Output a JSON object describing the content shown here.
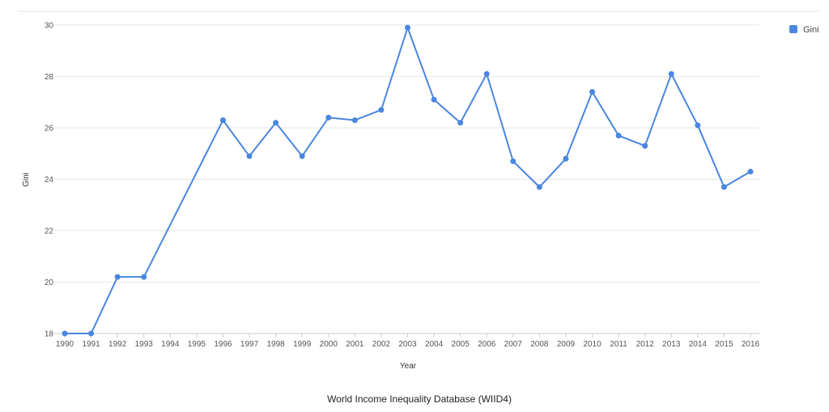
{
  "chart_data": {
    "type": "line",
    "title": "",
    "xlabel": "Year",
    "ylabel": "Gini",
    "ylim": [
      18,
      30
    ],
    "yticks": [
      18,
      20,
      22,
      24,
      26,
      28,
      30
    ],
    "grid": true,
    "legend_position": "top-right",
    "x": [
      "1990",
      "1991",
      "1992",
      "1993",
      "1994",
      "1995",
      "1996",
      "1997",
      "1998",
      "1999",
      "2000",
      "2001",
      "2002",
      "2003",
      "2004",
      "2005",
      "2006",
      "2007",
      "2008",
      "2009",
      "2010",
      "2011",
      "2012",
      "2013",
      "2014",
      "2015",
      "2016"
    ],
    "series": [
      {
        "name": "Gini",
        "color": "#4a86e0",
        "points": [
          {
            "x": "1990",
            "y": 18.0
          },
          {
            "x": "1991",
            "y": 18.0
          },
          {
            "x": "1992",
            "y": 20.2
          },
          {
            "x": "1993",
            "y": 20.2
          },
          {
            "x": "1996",
            "y": 26.3
          },
          {
            "x": "1997",
            "y": 24.9
          },
          {
            "x": "1998",
            "y": 26.2
          },
          {
            "x": "1999",
            "y": 24.9
          },
          {
            "x": "2000",
            "y": 26.4
          },
          {
            "x": "2001",
            "y": 26.3
          },
          {
            "x": "2002",
            "y": 26.7
          },
          {
            "x": "2003",
            "y": 29.9
          },
          {
            "x": "2004",
            "y": 27.1
          },
          {
            "x": "2005",
            "y": 26.2
          },
          {
            "x": "2006",
            "y": 28.1
          },
          {
            "x": "2007",
            "y": 24.7
          },
          {
            "x": "2008",
            "y": 23.7
          },
          {
            "x": "2009",
            "y": 24.8
          },
          {
            "x": "2010",
            "y": 27.4
          },
          {
            "x": "2011",
            "y": 25.7
          },
          {
            "x": "2012",
            "y": 25.3
          },
          {
            "x": "2013",
            "y": 28.1
          },
          {
            "x": "2014",
            "y": 26.1
          },
          {
            "x": "2015",
            "y": 23.7
          },
          {
            "x": "2016",
            "y": 24.3
          }
        ]
      }
    ],
    "source": "World Income Inequality Database (WIID4)"
  }
}
